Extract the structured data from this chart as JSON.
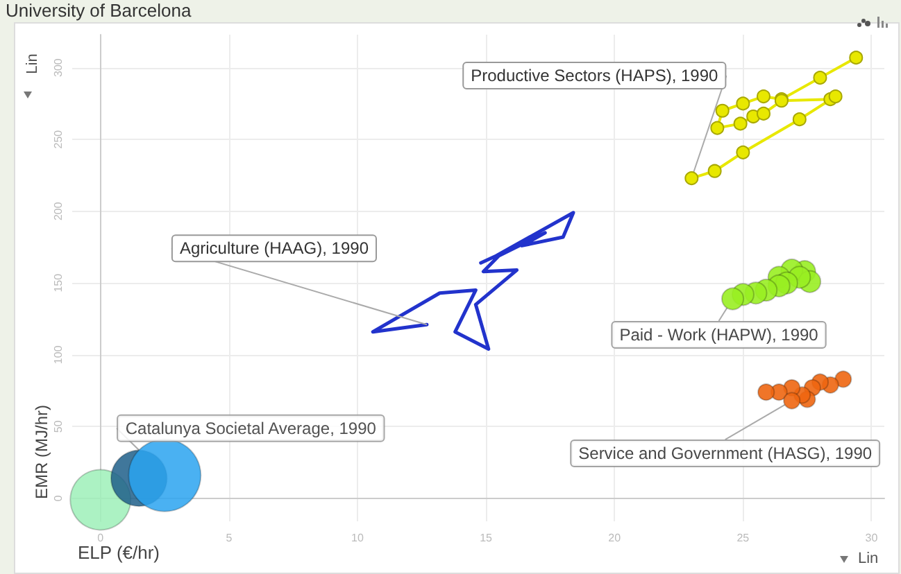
{
  "chart_data": {
    "type": "bubble",
    "xlabel": "ELP (€/hr)",
    "ylabel": "EMR (MJ/hr)",
    "annotations": [
      "University of Barcelona",
      "Lin",
      "Lin"
    ],
    "xlim": [
      -1.1,
      30.5
    ],
    "xticks": [
      0,
      5,
      10,
      15,
      20,
      25,
      30
    ],
    "ylim": [
      -16,
      323
    ],
    "yticks": [
      0,
      50,
      100,
      150,
      200,
      250,
      300
    ],
    "grid": true,
    "legend": false,
    "series": [
      {
        "name": "Catalunya Societal Average, 1990",
        "type": "bubble",
        "colors": [
          "#9ef0b8",
          "#1f5f8a",
          "#2aa3f0"
        ],
        "x": [
          0,
          1.5,
          2.5
        ],
        "values": [
          -1,
          14,
          16
        ],
        "sizes": [
          0.7,
          0.6,
          1
        ]
      },
      {
        "name": "Agriculture (HAAG), 1990",
        "type": "line",
        "color": "#2233cc",
        "marker": "none",
        "x": [
          14.8,
          15.4,
          18.4,
          18.0,
          16.4,
          17.3,
          15.5,
          14.9,
          16.2,
          14.6,
          15.1,
          13.8,
          14.6,
          13.2,
          10.6,
          12.7
        ],
        "values": [
          164,
          169,
          199,
          182,
          176,
          185,
          169,
          158,
          159,
          135,
          104,
          116,
          145,
          143,
          116,
          121
        ]
      },
      {
        "name": "Productive Sectors (HAPS), 1990",
        "type": "line",
        "color": "#e8e800",
        "marker": "circle",
        "x": [
          29.4,
          28.0,
          26.5,
          25.8,
          25.0,
          24.2,
          24.0,
          24.9,
          25.4,
          25.8,
          26.5,
          28.4,
          28.6,
          27.2,
          25.0,
          23.9,
          23.0
        ],
        "values": [
          307,
          293,
          278,
          280,
          275,
          270,
          258,
          261,
          266,
          268,
          277,
          278,
          280,
          264,
          241,
          228,
          223
        ]
      },
      {
        "name": "Paid - Work (HAPW), 1990",
        "type": "bubble",
        "color": "#99ee22",
        "x": [
          27.4,
          26.9,
          27.6,
          26.4,
          27.2,
          26.7,
          26.4,
          25.9,
          25.5,
          25.0,
          24.6
        ],
        "values": [
          158,
          159,
          151,
          154,
          154,
          150,
          148,
          145,
          143,
          142,
          139
        ],
        "sizes": [
          0.09,
          0.09,
          0.09,
          0.09,
          0.09,
          0.09,
          0.09,
          0.09,
          0.09,
          0.09,
          0.09
        ]
      },
      {
        "name": "Service and Government (HASG), 1990",
        "type": "bubble",
        "color": "#ee6611",
        "x": [
          28.9,
          28.4,
          28.0,
          27.7,
          27.5,
          27.3,
          26.9,
          26.4,
          25.9,
          26.9
        ],
        "values": [
          83,
          79,
          81,
          77,
          69,
          72,
          77,
          74,
          74,
          68
        ],
        "sizes": [
          0.05,
          0.05,
          0.05,
          0.05,
          0.05,
          0.05,
          0.05,
          0.05,
          0.05,
          0.05
        ]
      }
    ]
  }
}
